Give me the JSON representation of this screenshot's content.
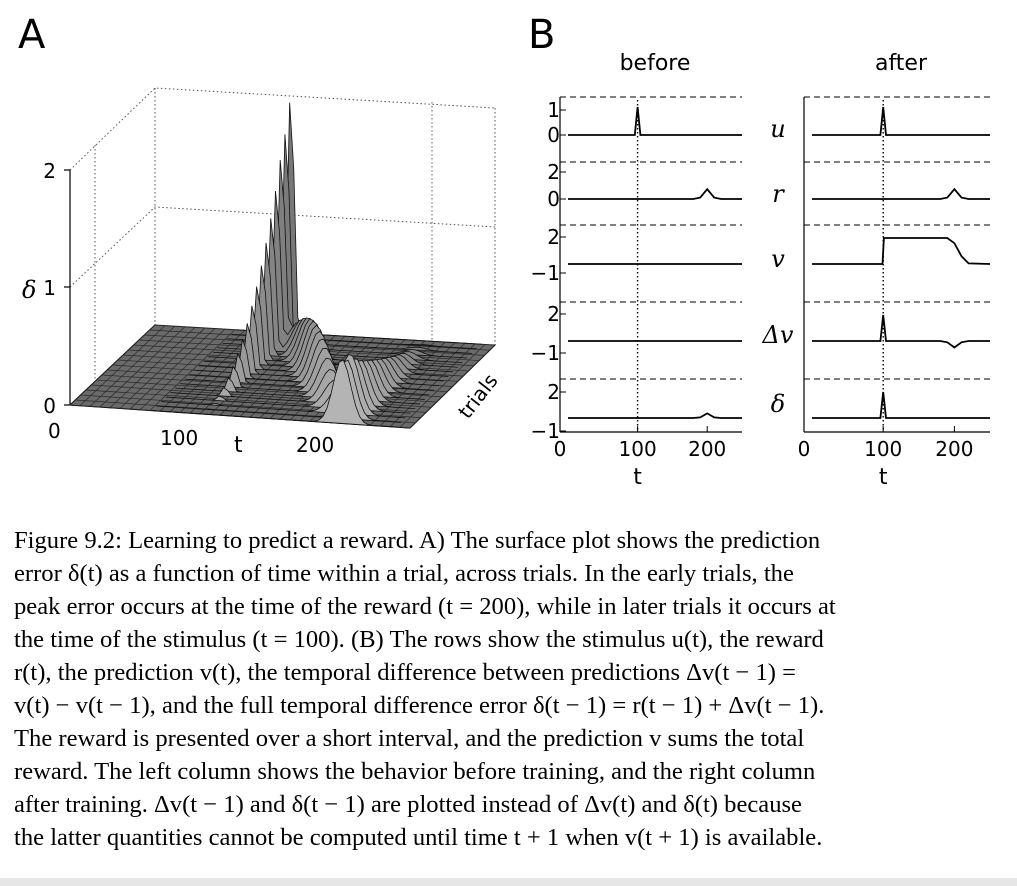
{
  "figure": {
    "panel_a_label": "A",
    "panel_b_label": "B",
    "panel_a": {
      "ylabel": "δ",
      "xlabel": "t",
      "depth_label": "trials",
      "z_ticks": [
        "0",
        "1",
        "2"
      ],
      "t_ticks": [
        "0",
        "100",
        "200"
      ]
    },
    "panel_b": {
      "column_titles": [
        "before",
        "after"
      ],
      "row_labels": [
        "u",
        "r",
        "v",
        "Δv",
        "δ"
      ],
      "left_y_ticks": [
        "1",
        "0",
        "2",
        "0",
        "2",
        "−1",
        "2",
        "−1",
        "2",
        "−1"
      ],
      "x_ticks_before": [
        "0",
        "100",
        "200"
      ],
      "x_ticks_after": [
        "0",
        "100",
        "200"
      ],
      "xlabel": "t"
    }
  },
  "chart_data": [
    {
      "type": "surface",
      "title": "",
      "xlabel": "t",
      "ylabel": "δ",
      "zlabel": "trials",
      "x_range": [
        0,
        250
      ],
      "y_range": [
        0,
        2.3
      ],
      "description_values": {
        "stimulus_time": 100,
        "reward_time": 200,
        "peak_delta_at_stimulus_late_trials": 2.2,
        "peak_delta_at_reward_early_trials": 0.5
      }
    },
    {
      "type": "line",
      "title": "before",
      "x_range": [
        0,
        250
      ],
      "xlabel": "t",
      "series": [
        {
          "name": "u",
          "points": [
            [
              0,
              0
            ],
            [
              96,
              0
            ],
            [
              100,
              1
            ],
            [
              104,
              0
            ],
            [
              250,
              0
            ]
          ]
        },
        {
          "name": "r",
          "points": [
            [
              0,
              0
            ],
            [
              180,
              0
            ],
            [
              190,
              0.05
            ],
            [
              200,
              0.35
            ],
            [
              210,
              0.05
            ],
            [
              220,
              0
            ],
            [
              250,
              0
            ]
          ]
        },
        {
          "name": "v",
          "points": [
            [
              0,
              0
            ],
            [
              250,
              0
            ]
          ]
        },
        {
          "name": "Δv",
          "points": [
            [
              0,
              0
            ],
            [
              250,
              0
            ]
          ]
        },
        {
          "name": "δ",
          "points": [
            [
              0,
              0
            ],
            [
              180,
              0
            ],
            [
              190,
              0.05
            ],
            [
              200,
              0.35
            ],
            [
              210,
              0.05
            ],
            [
              220,
              0
            ],
            [
              250,
              0
            ]
          ]
        }
      ]
    },
    {
      "type": "line",
      "title": "after",
      "x_range": [
        0,
        250
      ],
      "xlabel": "t",
      "series": [
        {
          "name": "u",
          "points": [
            [
              0,
              0
            ],
            [
              96,
              0
            ],
            [
              100,
              1
            ],
            [
              104,
              0
            ],
            [
              250,
              0
            ]
          ]
        },
        {
          "name": "r",
          "points": [
            [
              0,
              0
            ],
            [
              180,
              0
            ],
            [
              190,
              0.05
            ],
            [
              200,
              0.35
            ],
            [
              210,
              0.05
            ],
            [
              220,
              0
            ],
            [
              250,
              0
            ]
          ]
        },
        {
          "name": "v",
          "points": [
            [
              0,
              0
            ],
            [
              99,
              0
            ],
            [
              101,
              2
            ],
            [
              190,
              2
            ],
            [
              200,
              1.6
            ],
            [
              210,
              0.6
            ],
            [
              220,
              0.05
            ],
            [
              250,
              0
            ]
          ]
        },
        {
          "name": "Δv",
          "points": [
            [
              0,
              0
            ],
            [
              96,
              0
            ],
            [
              100,
              2
            ],
            [
              104,
              0
            ],
            [
              180,
              0
            ],
            [
              190,
              -0.1
            ],
            [
              200,
              -0.5
            ],
            [
              210,
              -0.1
            ],
            [
              220,
              0
            ],
            [
              250,
              0
            ]
          ]
        },
        {
          "name": "δ",
          "points": [
            [
              0,
              0
            ],
            [
              96,
              0
            ],
            [
              100,
              2
            ],
            [
              104,
              0
            ],
            [
              250,
              0
            ]
          ]
        }
      ]
    }
  ],
  "caption": {
    "lines": [
      "Figure 9.2: Learning to predict a reward. A) The surface plot shows the prediction",
      "error δ(t) as a function of time within a trial, across trials. In the early trials, the",
      "peak error occurs at the time of the reward (t = 200), while in later trials it occurs at",
      "the time of the stimulus (t = 100). (B) The rows show the stimulus u(t), the reward",
      "r(t), the prediction v(t), the temporal difference between predictions Δv(t − 1) =",
      "v(t) − v(t − 1), and the full temporal difference error δ(t − 1) = r(t − 1) + Δv(t − 1).",
      "The reward is presented over a short interval, and the prediction v sums the total",
      "reward. The left column shows the behavior before training, and the right column",
      "after training. Δv(t − 1) and δ(t − 1) are plotted instead of Δv(t) and δ(t) because",
      "the latter quantities cannot be computed until time t + 1 when v(t + 1) is available."
    ]
  }
}
